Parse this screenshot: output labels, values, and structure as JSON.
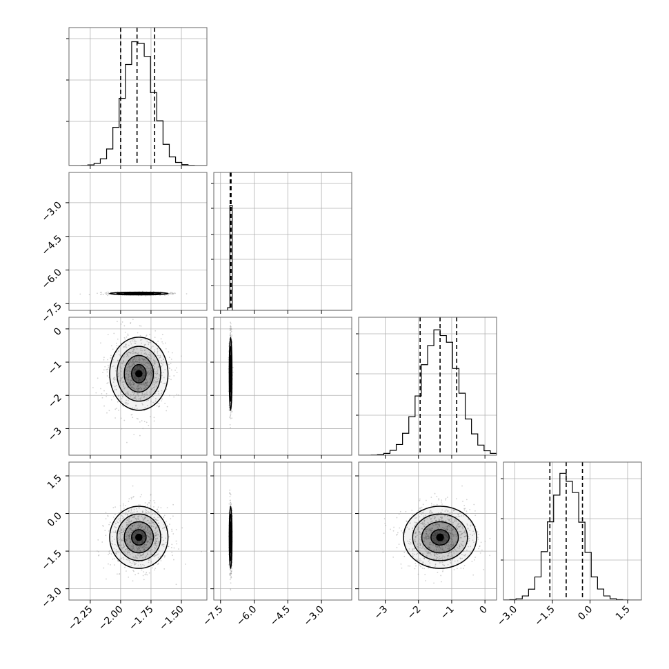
{
  "chart_data": {
    "type": "corner",
    "parameters": [
      {
        "mean": -1.85,
        "sd": 0.12,
        "q16": -2.0,
        "q50": -1.865,
        "q84": -1.72,
        "range": [
          -2.425,
          -1.29
        ],
        "ticks": [
          "−2.25",
          "−2.00",
          "−1.75",
          "−1.50"
        ],
        "tick_values": [
          -2.25,
          -2.0,
          -1.75,
          -1.5
        ]
      },
      {
        "mean": -7.05,
        "sd": 0.03,
        "q16": -7.07,
        "q50": -7.05,
        "q84": -7.03,
        "range": [
          -7.8,
          -1.65
        ],
        "ticks": [
          "−7.5",
          "−6.0",
          "−4.5",
          "−3.0"
        ],
        "tick_values": [
          -7.5,
          -6.0,
          -4.5,
          -3.0
        ]
      },
      {
        "mean": -1.35,
        "sd": 0.55,
        "q16": -1.95,
        "q50": -1.35,
        "q84": -0.85,
        "range": [
          -3.8,
          0.35
        ],
        "ticks": [
          "−3",
          "−2",
          "−1",
          "0"
        ],
        "tick_values": [
          -3,
          -2,
          -1,
          0
        ]
      },
      {
        "mean": -0.95,
        "sd": 0.62,
        "q16": -1.6,
        "q50": -0.95,
        "q84": -0.3,
        "range": [
          -3.45,
          2.05
        ],
        "ticks": [
          "−3.0",
          "−1.5",
          "0.0",
          "1.5"
        ],
        "tick_values": [
          -3.0,
          -1.5,
          0.0,
          1.5
        ]
      }
    ],
    "diag_ticks": [
      {
        "values": [
          0.92,
          0.62,
          0.32
        ]
      },
      {
        "values": [
          0.92,
          0.74,
          0.55,
          0.37,
          0.18
        ]
      },
      {
        "values": [
          0.88,
          0.59,
          0.29
        ]
      },
      {
        "values": [
          0.88,
          0.59,
          0.29
        ]
      }
    ],
    "grid": true,
    "quantile_lines": [
      0.16,
      0.5,
      0.84
    ],
    "colors": {
      "samples": "#9a9a9a",
      "density": "#000000",
      "grid": "#b0b0b0",
      "frame": "#666666"
    }
  }
}
